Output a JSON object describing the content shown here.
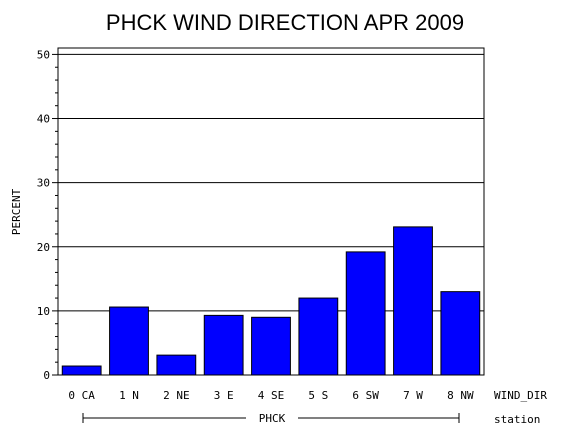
{
  "chart_data": {
    "type": "bar",
    "title": "PHCK WIND DIRECTION APR 2009",
    "ylabel": "PERCENT",
    "xlabel": "WIND_DIR",
    "group_axis_label": "station",
    "group_label": "PHCK",
    "ylim": [
      0,
      51
    ],
    "yticks": [
      "0",
      "10",
      "20",
      "30",
      "40",
      "50"
    ],
    "grid": true,
    "bar_color": "#0000ff",
    "categories": [
      "0 CA",
      "1 N",
      "2 NE",
      "3 E",
      "4 SE",
      "5 S",
      "6 SW",
      "7 W",
      "8 NW"
    ],
    "values": [
      1.4,
      10.6,
      3.1,
      9.3,
      9.0,
      12.0,
      19.2,
      23.1,
      13.0
    ]
  }
}
